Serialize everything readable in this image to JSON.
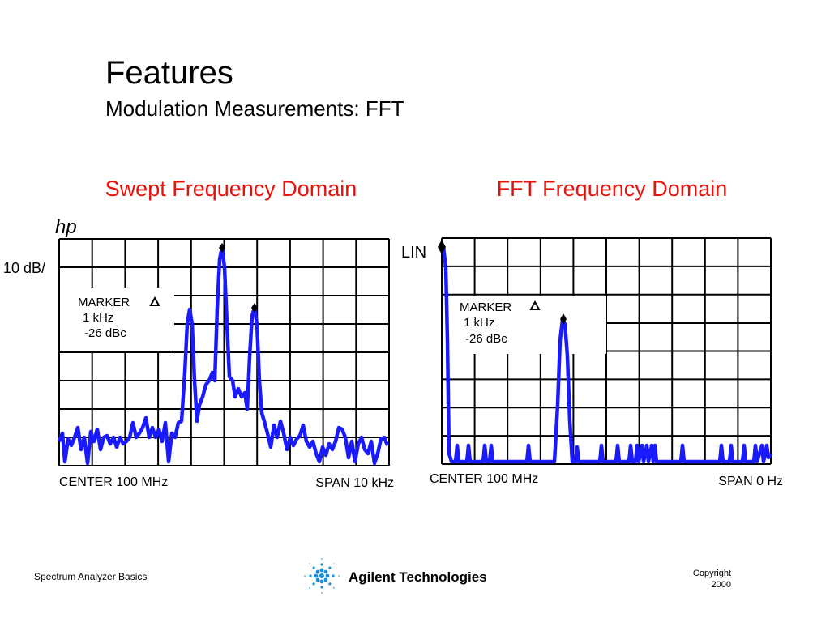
{
  "header": {
    "title": "Features",
    "subtitle": "Modulation Measurements: FFT"
  },
  "panels": [
    {
      "heading": "Swept Frequency Domain",
      "logo": "hp",
      "scale": "10 dB/",
      "marker": {
        "label": "MARKER",
        "frequency": "1 kHz",
        "level": "-26 dBc"
      },
      "center": "CENTER  100 MHz",
      "span": "SPAN 10 kHz"
    },
    {
      "heading": "FFT Frequency Domain",
      "scale": "LIN",
      "marker": {
        "label": "MARKER",
        "frequency": "1 kHz",
        "level": "-26 dBc"
      },
      "center": "CENTER 100 MHz",
      "span": "SPAN 0 Hz"
    }
  ],
  "footer": {
    "left": "Spectrum Analyzer Basics",
    "brand": "Agilent Technologies",
    "copyright": "Copyright",
    "year": "2000"
  }
}
